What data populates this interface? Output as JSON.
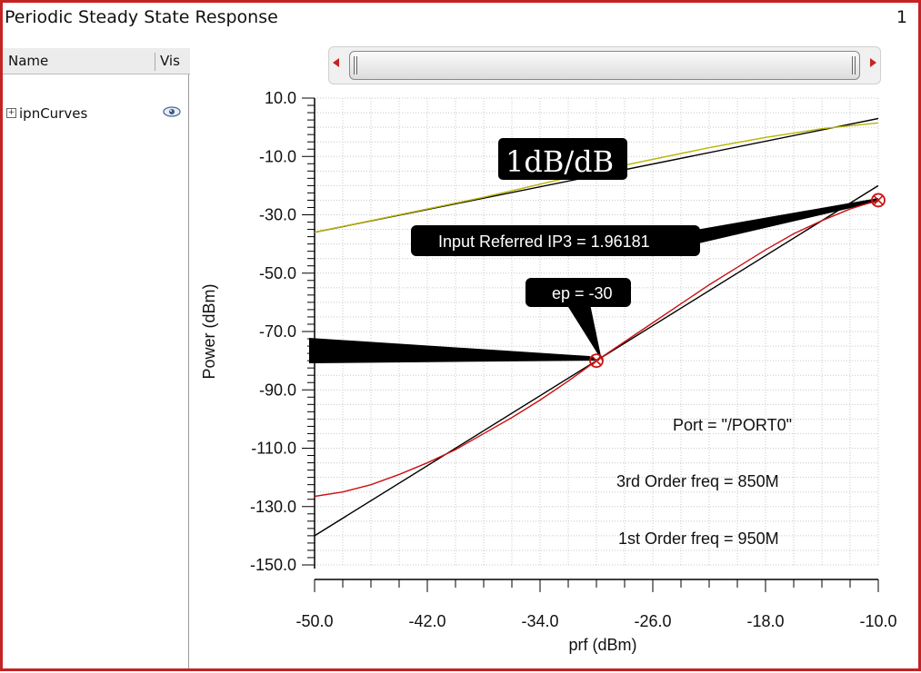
{
  "window": {
    "title": "Periodic Steady State Response",
    "number": "1"
  },
  "panel": {
    "col_name": "Name",
    "col_vis": "Vis",
    "tree_item": "ipnCurves",
    "expand_glyph": "+",
    "visibility_icon": "eye-icon"
  },
  "colors": {
    "frame": "#c42323",
    "ideal_line": "#000000",
    "third_order_curve": "#cc1111",
    "first_order_curve": "#b8b400"
  },
  "chart_data": {
    "type": "line",
    "xlabel": "prf (dBm)",
    "ylabel": "Power (dBm)",
    "xlim": [
      -50.0,
      -10.0
    ],
    "ylim": [
      -150.0,
      10.0
    ],
    "x_ticks": [
      "-50.0",
      "-42.0",
      "-34.0",
      "-26.0",
      "-18.0",
      "-10.0"
    ],
    "y_ticks": [
      "10.0",
      "-10.0",
      "-30.0",
      "-50.0",
      "-70.0",
      "-90.0",
      "-110.0",
      "-130.0",
      "-150.0"
    ],
    "grid": true,
    "series": [
      {
        "x": [
          -50,
          -10
        ],
        "y": [
          -36,
          3
        ]
      },
      {
        "x": [
          -50,
          -46,
          -42,
          -38,
          -34,
          -30,
          -26,
          -22,
          -18,
          -14,
          -10
        ],
        "y": [
          -36,
          -32,
          -28,
          -24,
          -19.5,
          -15,
          -11,
          -7,
          -3.5,
          -0.5,
          1.5
        ]
      },
      {
        "x": [
          -50,
          -10
        ],
        "y": [
          -140,
          -20
        ]
      },
      {
        "x": [
          -50,
          -48,
          -46,
          -44,
          -42,
          -40,
          -38,
          -36,
          -34,
          -32,
          -30,
          -28,
          -26,
          -24,
          -22,
          -20,
          -18,
          -16,
          -14,
          -12,
          -10
        ],
        "y": [
          -126.5,
          -125,
          -122.5,
          -119,
          -115,
          -110.5,
          -105,
          -99.5,
          -93.5,
          -87,
          -80,
          -73.5,
          -67,
          -60.5,
          -54,
          -48,
          -42,
          -36.5,
          -32,
          -28,
          -25
        ]
      }
    ],
    "markers": [
      {
        "x": -30,
        "y": -80
      },
      {
        "x": -10,
        "y": -25
      }
    ],
    "annotations": {
      "slope_label": "1dB/dB",
      "ip3_label": "Input Referred IP3 = 1.96181",
      "ep_label": "ep = -30",
      "port_label": "Port = \"/PORT0\"",
      "third_order_label": "3rd Order freq = 850M",
      "first_order_label": "1st Order freq = 950M"
    }
  }
}
